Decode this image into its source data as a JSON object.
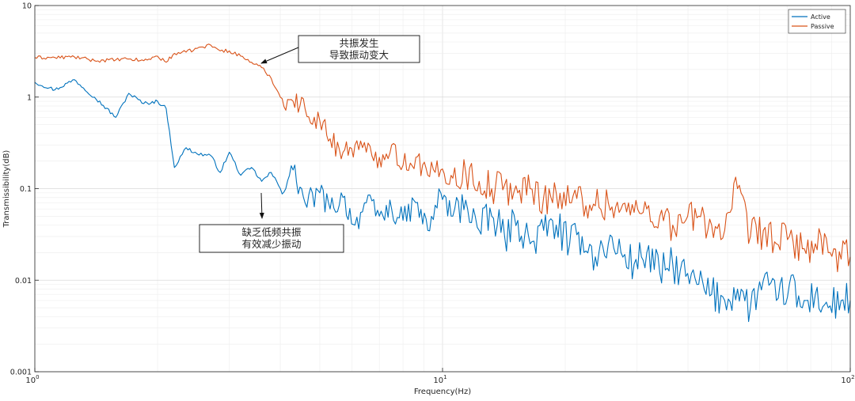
{
  "chart_data": {
    "type": "line",
    "title": "",
    "xlabel": "Frequency(Hz)",
    "ylabel": "Transmissibility(dB)",
    "x_scale": "log",
    "y_scale": "log",
    "xlim": [
      1,
      100
    ],
    "ylim": [
      0.001,
      10
    ],
    "x_ticks": [
      {
        "value": 1,
        "base": "10",
        "exp": "0"
      },
      {
        "value": 10,
        "base": "10",
        "exp": "1"
      },
      {
        "value": 100,
        "base": "10",
        "exp": "2"
      }
    ],
    "y_ticks": [
      {
        "value": 0.001,
        "label": "0.001"
      },
      {
        "value": 0.01,
        "label": "0.01"
      },
      {
        "value": 0.1,
        "label": "0.1"
      },
      {
        "value": 1,
        "label": "1"
      },
      {
        "value": 10,
        "label": "10"
      }
    ],
    "grid": true,
    "legend_position": "top-right",
    "series": [
      {
        "name": "Active",
        "color": "#0072BD",
        "x": [
          1.0,
          1.12,
          1.25,
          1.4,
          1.58,
          1.7,
          1.85,
          2.0,
          2.1,
          2.2,
          2.35,
          2.5,
          2.7,
          2.85,
          3.0,
          3.2,
          3.4,
          3.6,
          3.8,
          4.0,
          4.3,
          4.6,
          5.0,
          5.3,
          5.7,
          6.1,
          6.5,
          7.0,
          7.5,
          8.0,
          8.6,
          9.2,
          9.9,
          10.6,
          11.4,
          12.3,
          13.2,
          14.2,
          15.3,
          16.4,
          17.7,
          19.0,
          20.5,
          22.0,
          23.7,
          25.5,
          27.4,
          29.5,
          31.7,
          34.1,
          36.7,
          39.5,
          42.5,
          45.7,
          49.2,
          52.9,
          56.9,
          61.2,
          65.9,
          70.9,
          76.3,
          82.1,
          88.3,
          95.0,
          100.0
        ],
        "y": [
          1.45,
          1.2,
          1.55,
          1.0,
          0.6,
          1.1,
          0.85,
          0.9,
          0.75,
          0.17,
          0.28,
          0.24,
          0.23,
          0.15,
          0.25,
          0.14,
          0.17,
          0.12,
          0.15,
          0.1,
          0.16,
          0.07,
          0.09,
          0.06,
          0.08,
          0.04,
          0.07,
          0.05,
          0.06,
          0.045,
          0.07,
          0.035,
          0.09,
          0.05,
          0.075,
          0.035,
          0.05,
          0.03,
          0.045,
          0.025,
          0.035,
          0.04,
          0.025,
          0.03,
          0.018,
          0.025,
          0.02,
          0.015,
          0.02,
          0.012,
          0.015,
          0.011,
          0.009,
          0.007,
          0.006,
          0.008,
          0.005,
          0.01,
          0.006,
          0.009,
          0.005,
          0.007,
          0.005,
          0.006,
          0.006
        ]
      },
      {
        "name": "Passive",
        "color": "#D95319",
        "x": [
          1.0,
          1.12,
          1.25,
          1.4,
          1.58,
          1.7,
          1.85,
          2.0,
          2.1,
          2.2,
          2.35,
          2.5,
          2.7,
          2.85,
          3.0,
          3.2,
          3.4,
          3.6,
          3.8,
          4.0,
          4.3,
          4.6,
          5.0,
          5.3,
          5.7,
          6.1,
          6.5,
          7.0,
          7.5,
          8.0,
          8.6,
          9.2,
          9.9,
          10.6,
          11.4,
          12.3,
          13.2,
          14.2,
          15.3,
          16.4,
          17.7,
          19.0,
          20.5,
          22.0,
          23.7,
          25.5,
          27.4,
          29.5,
          31.7,
          34.1,
          36.7,
          39.5,
          42.5,
          45.7,
          49.2,
          52.9,
          56.9,
          61.2,
          65.9,
          70.9,
          76.3,
          82.1,
          88.3,
          95.0,
          100.0
        ],
        "y": [
          2.7,
          2.7,
          2.75,
          2.5,
          2.55,
          2.6,
          2.5,
          2.8,
          2.4,
          3.0,
          3.1,
          3.4,
          3.7,
          3.2,
          3.2,
          2.8,
          2.4,
          2.1,
          1.6,
          1.0,
          0.9,
          0.75,
          0.55,
          0.35,
          0.25,
          0.3,
          0.25,
          0.22,
          0.3,
          0.18,
          0.22,
          0.14,
          0.16,
          0.13,
          0.15,
          0.12,
          0.1,
          0.11,
          0.09,
          0.1,
          0.08,
          0.09,
          0.07,
          0.08,
          0.065,
          0.07,
          0.06,
          0.055,
          0.06,
          0.05,
          0.04,
          0.045,
          0.05,
          0.04,
          0.035,
          0.1,
          0.03,
          0.035,
          0.025,
          0.03,
          0.022,
          0.025,
          0.02,
          0.017,
          0.018
        ]
      }
    ],
    "annotations": [
      {
        "line1": "共振发生",
        "line2": "导致振动变大"
      },
      {
        "line1": "缺乏低频共振",
        "line2": "有效减少振动"
      }
    ]
  }
}
